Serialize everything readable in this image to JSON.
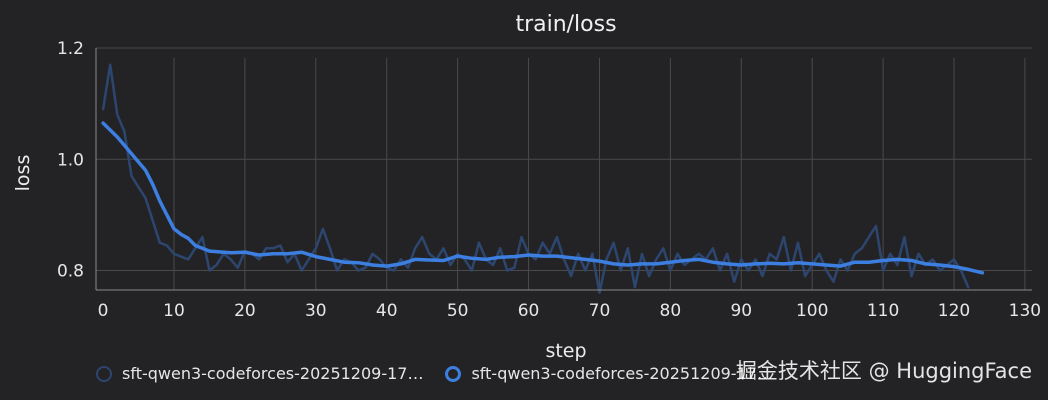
{
  "chart_data": {
    "type": "line",
    "title": "train/loss",
    "xlabel": "step",
    "ylabel": "loss",
    "xlim": [
      -1,
      131
    ],
    "ylim": [
      0.765,
      1.2
    ],
    "x_ticks": [
      0,
      10,
      20,
      30,
      40,
      50,
      60,
      70,
      80,
      90,
      100,
      110,
      120,
      130
    ],
    "y_ticks": [
      0.8,
      1.0,
      1.2
    ],
    "y_tick_labels": [
      "0.8",
      "1.0",
      "1.2"
    ],
    "grid": true,
    "legend_position": "bottom-left",
    "series": [
      {
        "name": "sft-qwen3-codeforces-20251209-17…",
        "color": "#2d4670",
        "width": 2.5,
        "x": [
          0,
          1,
          2,
          3,
          4,
          5,
          6,
          7,
          8,
          9,
          10,
          11,
          12,
          13,
          14,
          15,
          16,
          17,
          18,
          19,
          20,
          21,
          22,
          23,
          24,
          25,
          26,
          27,
          28,
          29,
          30,
          31,
          32,
          33,
          34,
          35,
          36,
          37,
          38,
          39,
          40,
          41,
          42,
          43,
          44,
          45,
          46,
          47,
          48,
          49,
          50,
          51,
          52,
          53,
          54,
          55,
          56,
          57,
          58,
          59,
          60,
          61,
          62,
          63,
          64,
          65,
          66,
          67,
          68,
          69,
          70,
          71,
          72,
          73,
          74,
          75,
          76,
          77,
          78,
          79,
          80,
          81,
          82,
          83,
          84,
          85,
          86,
          87,
          88,
          89,
          90,
          91,
          92,
          93,
          94,
          95,
          96,
          97,
          98,
          99,
          100,
          101,
          102,
          103,
          104,
          105,
          106,
          107,
          108,
          109,
          110,
          111,
          112,
          113,
          114,
          115,
          116,
          117,
          118,
          119,
          120,
          121,
          122
        ],
        "y": [
          1.09,
          1.17,
          1.08,
          1.05,
          0.97,
          0.95,
          0.93,
          0.89,
          0.85,
          0.845,
          0.83,
          0.825,
          0.82,
          0.84,
          0.86,
          0.8,
          0.81,
          0.83,
          0.82,
          0.805,
          0.835,
          0.83,
          0.82,
          0.84,
          0.84,
          0.845,
          0.815,
          0.83,
          0.8,
          0.82,
          0.84,
          0.875,
          0.84,
          0.8,
          0.82,
          0.815,
          0.8,
          0.805,
          0.83,
          0.82,
          0.805,
          0.8,
          0.82,
          0.805,
          0.84,
          0.86,
          0.83,
          0.82,
          0.84,
          0.81,
          0.83,
          0.82,
          0.8,
          0.85,
          0.82,
          0.81,
          0.84,
          0.8,
          0.805,
          0.86,
          0.83,
          0.82,
          0.85,
          0.83,
          0.86,
          0.82,
          0.79,
          0.83,
          0.8,
          0.83,
          0.76,
          0.82,
          0.85,
          0.8,
          0.84,
          0.77,
          0.83,
          0.79,
          0.82,
          0.84,
          0.8,
          0.83,
          0.81,
          0.82,
          0.83,
          0.82,
          0.84,
          0.8,
          0.83,
          0.78,
          0.82,
          0.8,
          0.82,
          0.79,
          0.83,
          0.82,
          0.86,
          0.8,
          0.85,
          0.79,
          0.81,
          0.83,
          0.8,
          0.78,
          0.82,
          0.8,
          0.83,
          0.84,
          0.86,
          0.88,
          0.8,
          0.83,
          0.81,
          0.86,
          0.79,
          0.83,
          0.81,
          0.82,
          0.8,
          0.81,
          0.82,
          0.8,
          0.77
        ]
      },
      {
        "name": "sft-qwen3-codeforces-20251209-17…",
        "color": "#3c7fe0",
        "width": 3.5,
        "x": [
          0,
          2,
          4,
          5,
          6,
          7,
          8,
          9,
          10,
          11,
          12,
          13,
          15,
          18,
          20,
          22,
          24,
          26,
          28,
          30,
          32,
          34,
          36,
          38,
          40,
          42,
          44,
          46,
          48,
          50,
          52,
          54,
          56,
          58,
          60,
          62,
          64,
          66,
          68,
          70,
          72,
          74,
          76,
          78,
          80,
          82,
          84,
          86,
          88,
          90,
          92,
          94,
          96,
          98,
          100,
          102,
          104,
          106,
          108,
          110,
          112,
          114,
          116,
          118,
          120,
          122,
          124
        ],
        "y": [
          1.065,
          1.04,
          1.01,
          0.995,
          0.98,
          0.955,
          0.925,
          0.9,
          0.875,
          0.865,
          0.858,
          0.845,
          0.835,
          0.832,
          0.833,
          0.828,
          0.83,
          0.83,
          0.833,
          0.825,
          0.82,
          0.815,
          0.814,
          0.81,
          0.808,
          0.812,
          0.82,
          0.819,
          0.818,
          0.826,
          0.822,
          0.82,
          0.824,
          0.825,
          0.828,
          0.826,
          0.826,
          0.823,
          0.82,
          0.817,
          0.812,
          0.81,
          0.812,
          0.812,
          0.815,
          0.818,
          0.82,
          0.815,
          0.812,
          0.81,
          0.812,
          0.813,
          0.812,
          0.814,
          0.812,
          0.81,
          0.808,
          0.815,
          0.815,
          0.818,
          0.82,
          0.818,
          0.812,
          0.81,
          0.807,
          0.802,
          0.796
        ]
      }
    ]
  },
  "watermark": "掘金技术社区 @ HuggingFace"
}
